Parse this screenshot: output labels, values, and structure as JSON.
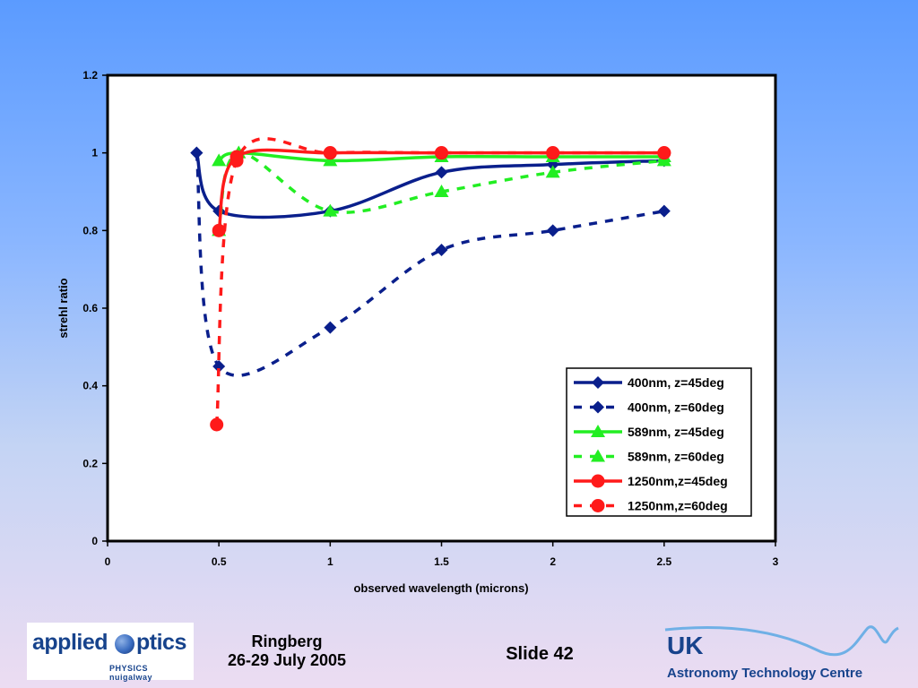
{
  "chart_data": {
    "type": "line",
    "xlabel": "observed wavelength (microns)",
    "ylabel": "strehl ratio",
    "xlim": [
      0,
      3
    ],
    "ylim": [
      0,
      1.2
    ],
    "x_ticks": [
      "0",
      "0.5",
      "1",
      "1.5",
      "2",
      "2.5",
      "3"
    ],
    "y_ticks": [
      "0",
      "0.2",
      "0.4",
      "0.6",
      "0.8",
      "1",
      "1.2"
    ],
    "grid": false,
    "legend_position": "bottom-right",
    "series": [
      {
        "name": "400nm, z=45deg",
        "color": "#0a1f8c",
        "style": "solid",
        "marker": "diamond",
        "x": [
          0.4,
          0.5,
          1.0,
          1.5,
          2.0,
          2.5
        ],
        "y": [
          1.0,
          0.85,
          0.85,
          0.95,
          0.97,
          0.98
        ]
      },
      {
        "name": "400nm, z=60deg",
        "color": "#0a1f8c",
        "style": "dashed",
        "marker": "diamond",
        "x": [
          0.4,
          0.5,
          1.0,
          1.5,
          2.0,
          2.5
        ],
        "y": [
          1.0,
          0.45,
          0.55,
          0.75,
          0.8,
          0.85
        ]
      },
      {
        "name": "589nm, z=45deg",
        "color": "#22ee22",
        "style": "solid",
        "marker": "triangle",
        "x": [
          0.5,
          0.589,
          1.0,
          1.5,
          2.0,
          2.5
        ],
        "y": [
          0.98,
          1.0,
          0.98,
          0.99,
          0.99,
          0.99
        ]
      },
      {
        "name": "589nm, z=60deg",
        "color": "#22ee22",
        "style": "dashed",
        "marker": "triangle",
        "x": [
          0.5,
          0.589,
          1.0,
          1.5,
          2.0,
          2.5
        ],
        "y": [
          0.8,
          1.0,
          0.85,
          0.9,
          0.95,
          0.98
        ]
      },
      {
        "name": "1250nm,z=45deg",
        "color": "#ff1a1a",
        "style": "solid",
        "marker": "circle",
        "x": [
          0.5,
          0.58,
          1.0,
          1.5,
          2.0,
          2.5
        ],
        "y": [
          0.8,
          0.99,
          1.0,
          1.0,
          1.0,
          1.0
        ]
      },
      {
        "name": "1250nm,z=60deg",
        "color": "#ff1a1a",
        "style": "dashed",
        "marker": "circle",
        "x": [
          0.49,
          0.58,
          1.0,
          1.5,
          2.0,
          2.5
        ],
        "y": [
          0.3,
          0.98,
          1.0,
          1.0,
          1.0,
          1.0
        ]
      }
    ]
  },
  "footer": {
    "logo_left_word1": "applied",
    "logo_left_word2": "ptics",
    "logo_left_sub": "PHYSICS nuigalway",
    "event_line1": "Ringberg",
    "event_line2": "26-29 July 2005",
    "slide_label": "Slide 42",
    "logo_right_big": "UK",
    "logo_right_small": "Astronomy Technology Centre"
  }
}
